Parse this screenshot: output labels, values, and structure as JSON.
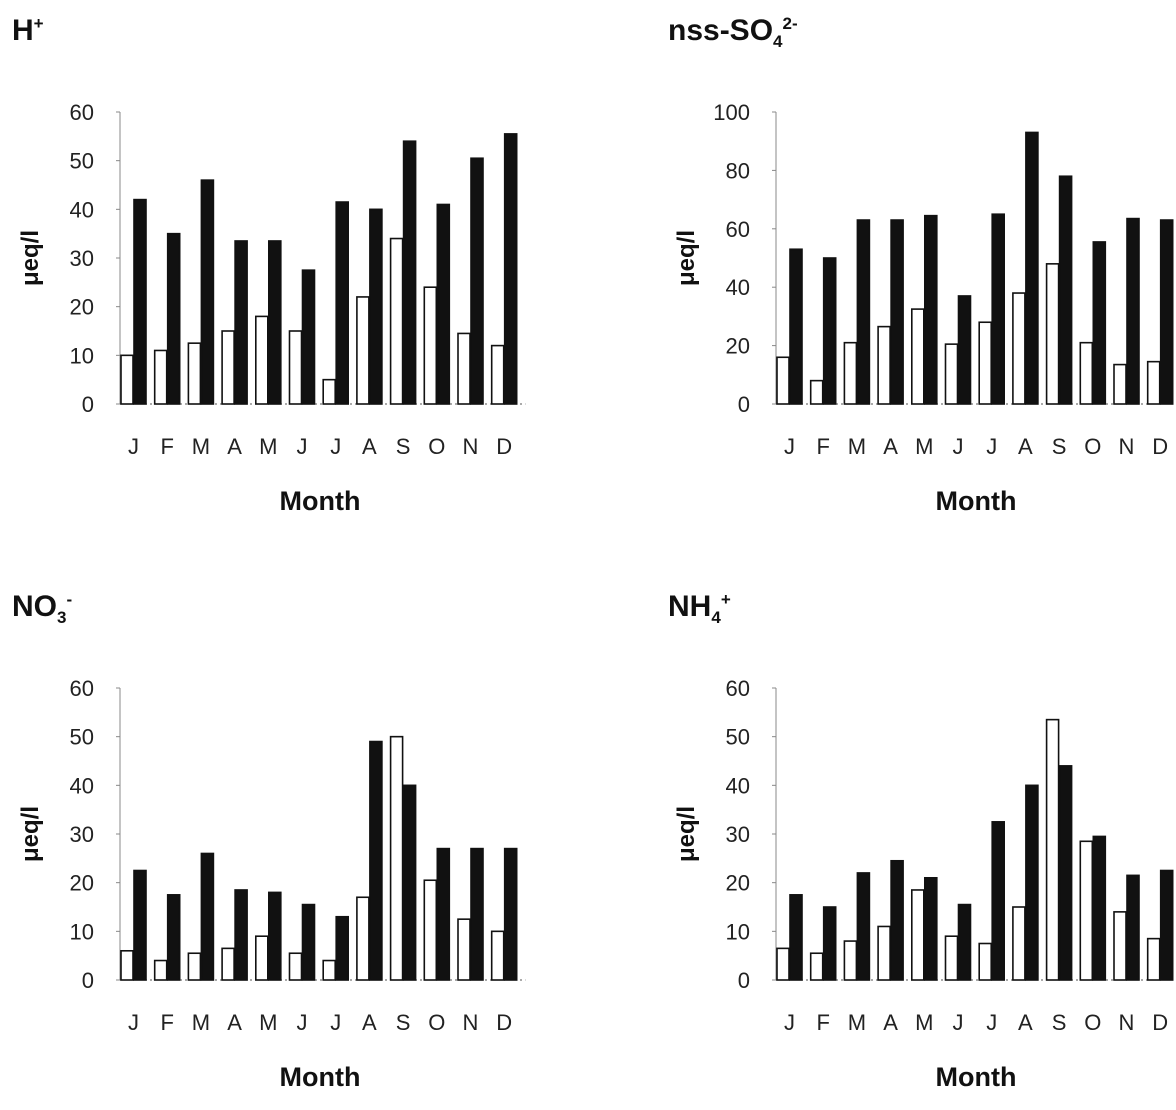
{
  "chart_data": [
    {
      "type": "bar",
      "title_main": "H",
      "title_sup": "+",
      "title_sub": "",
      "categories": [
        "J",
        "F",
        "M",
        "A",
        "M",
        "J",
        "J",
        "A",
        "S",
        "O",
        "N",
        "D"
      ],
      "series": [
        {
          "values": [
            10,
            11,
            12.5,
            15,
            18,
            15,
            5,
            22,
            34,
            24,
            14.5,
            12
          ],
          "fill": "#ffffff"
        },
        {
          "values": [
            42,
            35,
            46,
            33.5,
            33.5,
            27.5,
            41.5,
            40,
            54,
            41,
            50.5,
            55.5
          ],
          "fill": "#111111"
        }
      ],
      "xlabel": "Month",
      "ylabel": "μeq/l",
      "ylim": [
        0,
        60
      ],
      "yticks": [
        0,
        10,
        20,
        30,
        40,
        50,
        60
      ],
      "grid": false
    },
    {
      "type": "bar",
      "title_main": "nss-SO",
      "title_sub": "4",
      "title_sup": "2-",
      "categories": [
        "J",
        "F",
        "M",
        "A",
        "M",
        "J",
        "J",
        "A",
        "S",
        "O",
        "N",
        "D"
      ],
      "series": [
        {
          "values": [
            16,
            8,
            21,
            26.5,
            32.5,
            20.5,
            28,
            38,
            48,
            21,
            13.5,
            14.5
          ],
          "fill": "#ffffff"
        },
        {
          "values": [
            53,
            50,
            63,
            63,
            64.5,
            37,
            65,
            93,
            78,
            55.5,
            63.5,
            63
          ]
        }
      ],
      "xlabel": "Month",
      "ylabel": "μeq/l",
      "ylim": [
        0,
        100
      ],
      "yticks": [
        0,
        20,
        40,
        60,
        80,
        100
      ],
      "grid": false
    },
    {
      "type": "bar",
      "title_main": "NO",
      "title_sub": "3",
      "title_sup": "-",
      "categories": [
        "J",
        "F",
        "M",
        "A",
        "M",
        "J",
        "J",
        "A",
        "S",
        "O",
        "N",
        "D"
      ],
      "series": [
        {
          "values": [
            6,
            4,
            5.5,
            6.5,
            9,
            5.5,
            4,
            17,
            50,
            20.5,
            12.5,
            10
          ]
        },
        {
          "values": [
            22.5,
            17.5,
            26,
            18.5,
            18,
            15.5,
            13,
            49,
            40,
            27,
            27,
            27
          ]
        }
      ],
      "xlabel": "Month",
      "ylabel": "μeq/l",
      "ylim": [
        0,
        60
      ],
      "yticks": [
        0,
        10,
        20,
        30,
        40,
        50,
        60
      ],
      "grid": false
    },
    {
      "type": "bar",
      "title_main": "NH",
      "title_sub": "4",
      "title_sup": "+",
      "categories": [
        "J",
        "F",
        "M",
        "A",
        "M",
        "J",
        "J",
        "A",
        "S",
        "O",
        "N",
        "D"
      ],
      "series": [
        {
          "values": [
            6.5,
            5.5,
            8,
            11,
            18.5,
            9,
            7.5,
            15,
            53.5,
            28.5,
            14,
            8.5
          ]
        },
        {
          "values": [
            17.5,
            15,
            22,
            24.5,
            21,
            15.5,
            32.5,
            40,
            44,
            29.5,
            21.5,
            22.5
          ]
        }
      ],
      "xlabel": "Month",
      "ylabel": "μeq/l",
      "ylim": [
        0,
        60
      ],
      "yticks": [
        0,
        10,
        20,
        30,
        40,
        50,
        60
      ],
      "grid": false
    }
  ],
  "colors": {
    "open_bar_fill": "#ffffff",
    "filled_bar_fill": "#111111",
    "bar_stroke": "#111111"
  }
}
